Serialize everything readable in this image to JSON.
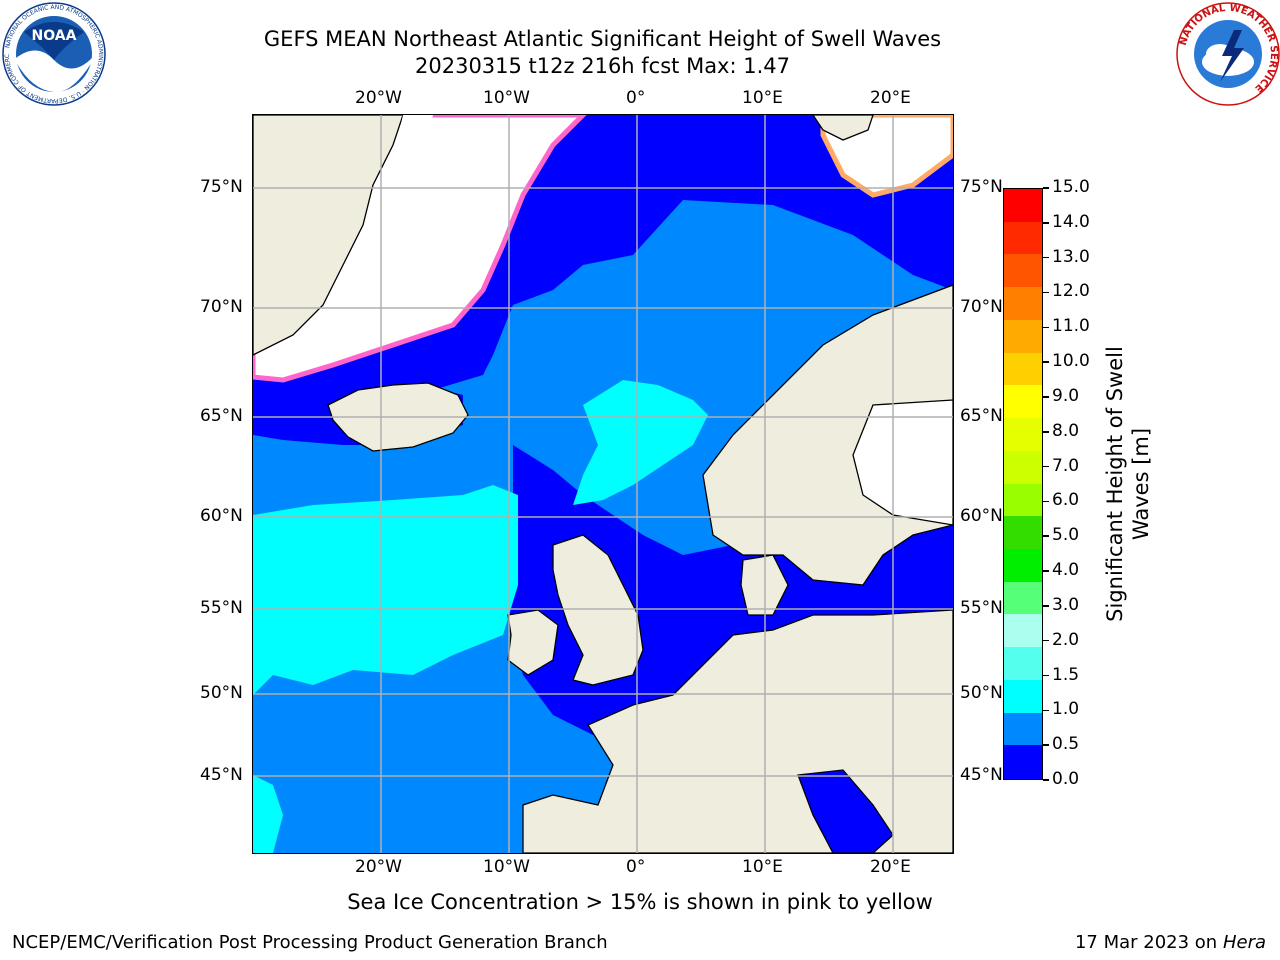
{
  "title": {
    "line1": "GEFS MEAN Northeast Atlantic Significant Height of Swell Waves",
    "line2": "20230315 t12z 216h fcst   Max: 1.47"
  },
  "map": {
    "lon_labels": [
      "20°W",
      "10°W",
      "0°",
      "10°E",
      "20°E"
    ],
    "lat_labels": [
      "75°N",
      "70°N",
      "65°N",
      "60°N",
      "55°N",
      "50°N",
      "45°N"
    ]
  },
  "colorbar": {
    "label_line1": "Significant Height of Swell",
    "label_line2": "Waves [m]",
    "ticks": [
      "15.0",
      "14.0",
      "13.0",
      "12.0",
      "11.0",
      "10.0",
      "9.0",
      "8.0",
      "7.0",
      "6.0",
      "5.0",
      "4.0",
      "3.0",
      "2.0",
      "1.5",
      "1.0",
      "0.5",
      "0.0"
    ],
    "colors": [
      "#ff0000",
      "#ff2a00",
      "#ff5500",
      "#ff8000",
      "#ffaa00",
      "#ffd000",
      "#ffff00",
      "#e6ff00",
      "#ccff00",
      "#99ff00",
      "#33dd00",
      "#00ee00",
      "#55ff77",
      "#aaffee",
      "#55ffee",
      "#00ffff",
      "#0088ff",
      "#0000ff"
    ]
  },
  "colors": {
    "land": "#efedde",
    "ocean_low": "#0000ff",
    "ocean_mid": "#0088ff",
    "ocean_high": "#00ffff",
    "ice": "#ffffff",
    "grid": "#b0b0b0"
  },
  "note": "Sea Ice Concentration > 15% is shown in pink to yellow",
  "footer": {
    "left": "NCEP/EMC/Verification Post Processing Product Generation Branch",
    "date": "17 Mar 2023 on",
    "machine": "Hera"
  },
  "logos": {
    "noaa_text": "NOAA",
    "noaa_ring": "NATIONAL OCEANIC AND ATMOSPHERIC ADMINISTRATION · U.S. DEPARTMENT OF COMMERCE",
    "nws_ring": "NATIONAL WEATHER SERVICE"
  }
}
